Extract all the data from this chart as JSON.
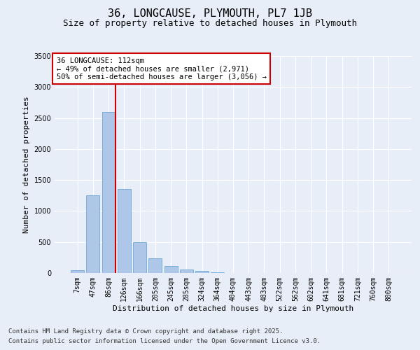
{
  "title_line1": "36, LONGCAUSE, PLYMOUTH, PL7 1JB",
  "title_line2": "Size of property relative to detached houses in Plymouth",
  "xlabel": "Distribution of detached houses by size in Plymouth",
  "ylabel": "Number of detached properties",
  "categories": [
    "7sqm",
    "47sqm",
    "86sqm",
    "126sqm",
    "166sqm",
    "205sqm",
    "245sqm",
    "285sqm",
    "324sqm",
    "364sqm",
    "404sqm",
    "443sqm",
    "483sqm",
    "522sqm",
    "562sqm",
    "602sqm",
    "641sqm",
    "681sqm",
    "721sqm",
    "760sqm",
    "800sqm"
  ],
  "values": [
    50,
    1250,
    2600,
    1350,
    500,
    240,
    110,
    55,
    30,
    15,
    5,
    0,
    0,
    0,
    0,
    0,
    0,
    0,
    0,
    0,
    0
  ],
  "bar_color": "#aec6e8",
  "bar_edge_color": "#5a9fd4",
  "background_color": "#e8eef8",
  "grid_color": "#ffffff",
  "vline_color": "#cc0000",
  "vline_x_index": 2,
  "ylim": [
    0,
    3500
  ],
  "yticks": [
    0,
    500,
    1000,
    1500,
    2000,
    2500,
    3000,
    3500
  ],
  "annotation_title": "36 LONGCAUSE: 112sqm",
  "annotation_line1": "← 49% of detached houses are smaller (2,971)",
  "annotation_line2": "50% of semi-detached houses are larger (3,056) →",
  "annotation_box_color": "#cc0000",
  "footer_line1": "Contains HM Land Registry data © Crown copyright and database right 2025.",
  "footer_line2": "Contains public sector information licensed under the Open Government Licence v3.0.",
  "title_fontsize": 11,
  "subtitle_fontsize": 9,
  "axis_label_fontsize": 8,
  "tick_fontsize": 7,
  "annotation_fontsize": 7.5,
  "footer_fontsize": 6.5
}
